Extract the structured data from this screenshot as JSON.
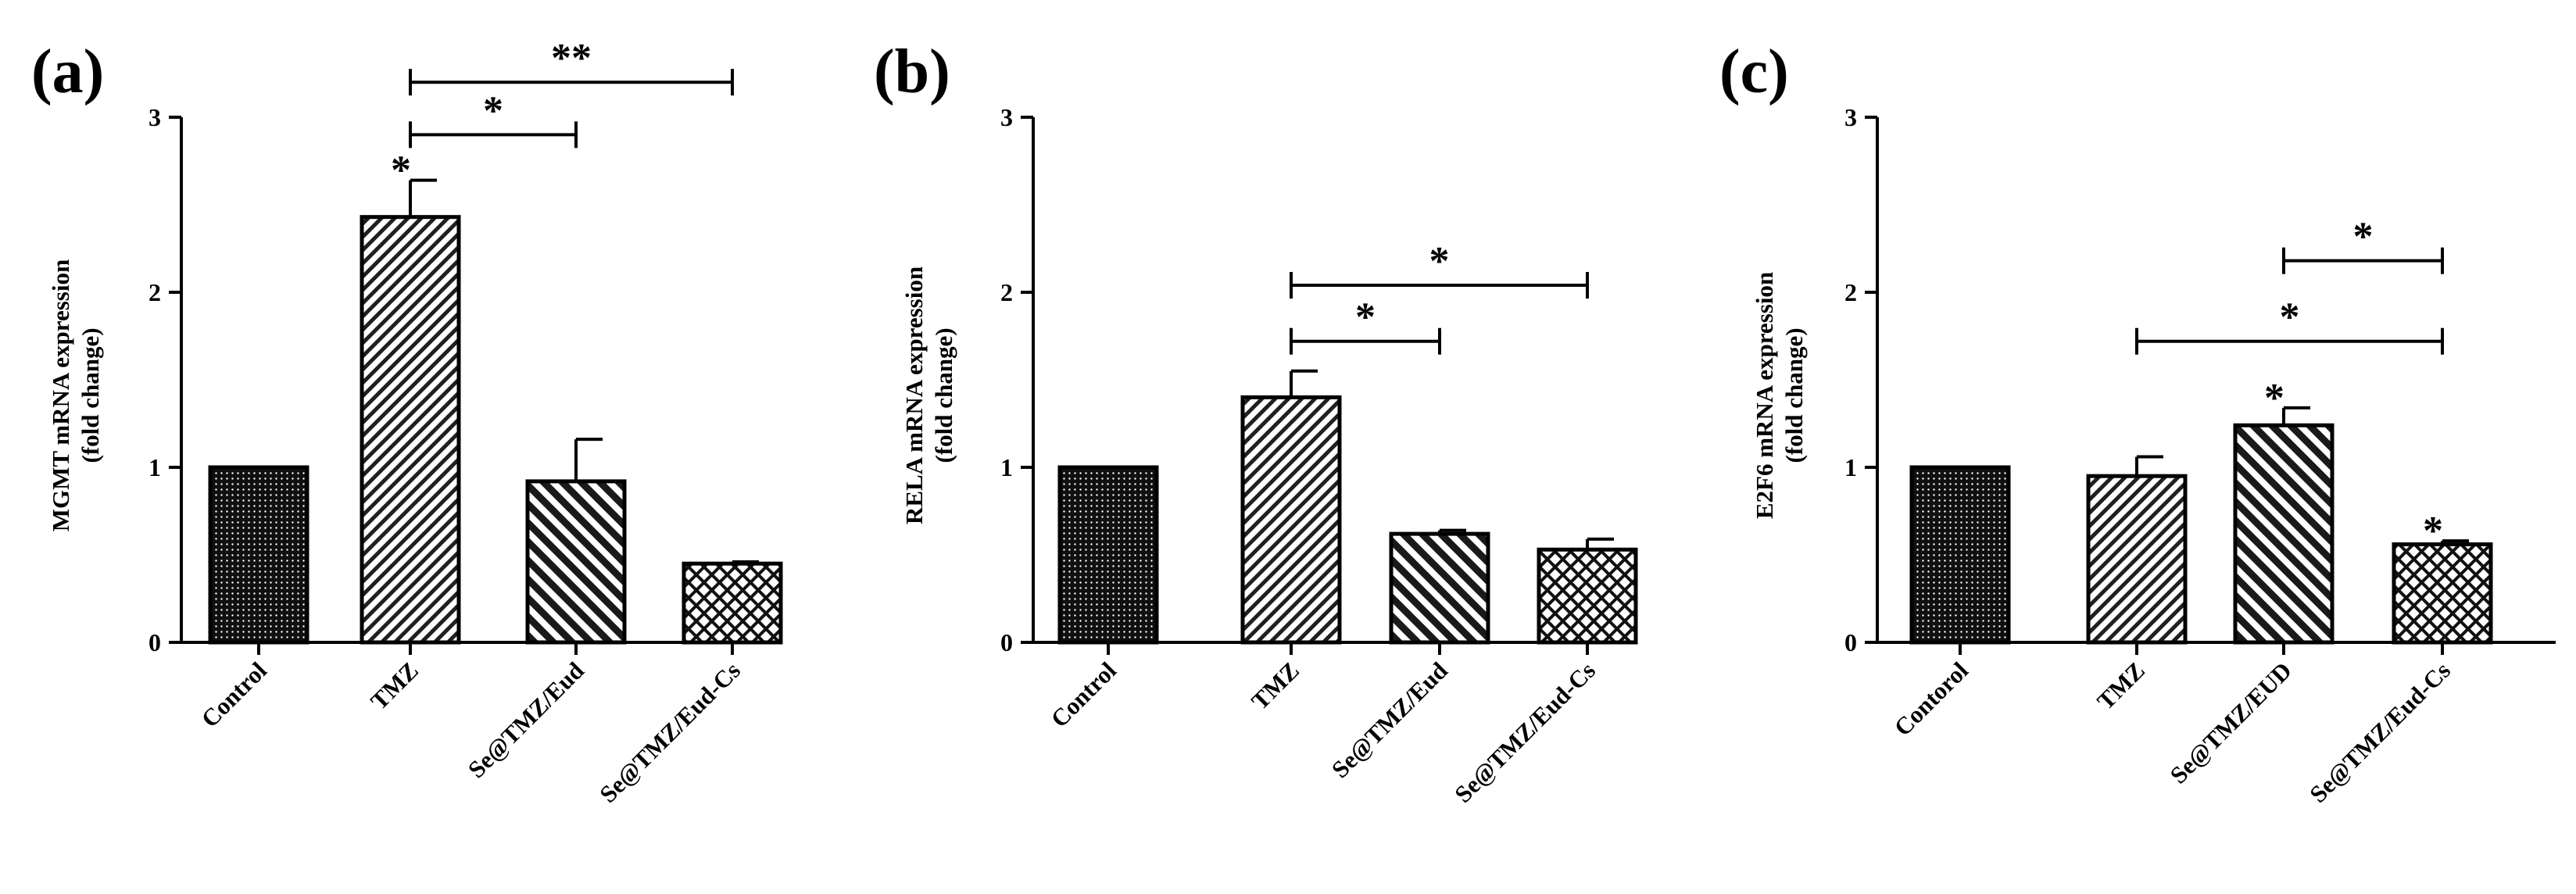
{
  "figure": {
    "panels": [
      "(a)",
      "(b)",
      "(c)"
    ]
  },
  "chart_data": [
    {
      "type": "bar",
      "panel": "(a)",
      "ylabel": [
        "MGMT mRNA expression",
        "(fold change)"
      ],
      "ylim": [
        0,
        3
      ],
      "yticks": [
        "0",
        "1",
        "2",
        "3"
      ],
      "categories": [
        "Control",
        "TMZ",
        "Se@TMZ/Eud",
        "Se@TMZ/Eud-Cs"
      ],
      "values": [
        1.0,
        2.43,
        0.92,
        0.45
      ],
      "errors": [
        0,
        0.21,
        0.24,
        0.01
      ],
      "patterns": [
        "dots",
        "diag",
        "backdiag",
        "cross"
      ],
      "bar_stars": [
        "",
        "*",
        "",
        ""
      ],
      "brackets": [
        {
          "from": 1,
          "to": 3,
          "y": 3.2,
          "label": "**"
        },
        {
          "from": 1,
          "to": 2,
          "y": 2.9,
          "label": "*"
        }
      ]
    },
    {
      "type": "bar",
      "panel": "(b)",
      "ylabel": [
        "RELA mRNA expression",
        "(fold change)"
      ],
      "ylim": [
        0,
        3
      ],
      "yticks": [
        "0",
        "1",
        "2",
        "3"
      ],
      "categories": [
        "Control",
        "TMZ",
        "Se@TMZ/Eud",
        "Se@TMZ/Eud-Cs"
      ],
      "values": [
        1.0,
        1.4,
        0.62,
        0.53
      ],
      "errors": [
        0,
        0.15,
        0.02,
        0.06
      ],
      "patterns": [
        "dots",
        "diag",
        "backdiag",
        "cross"
      ],
      "bar_stars": [
        "",
        "",
        "",
        ""
      ],
      "brackets": [
        {
          "from": 1,
          "to": 3,
          "y": 2.04,
          "label": "*"
        },
        {
          "from": 1,
          "to": 2,
          "y": 1.72,
          "label": "*"
        }
      ]
    },
    {
      "type": "bar",
      "panel": "(c)",
      "ylabel": [
        "E2F6 mRNA expression",
        "(fold change)"
      ],
      "ylim": [
        0,
        3
      ],
      "yticks": [
        "0",
        "1",
        "2",
        "3"
      ],
      "categories": [
        "Contorol",
        "TMZ",
        "Se@TMZ/EUD",
        "Se@TMZ/Eud-Cs"
      ],
      "values": [
        1.0,
        0.95,
        1.24,
        0.56
      ],
      "errors": [
        0,
        0.11,
        0.1,
        0.02
      ],
      "patterns": [
        "dots",
        "diag",
        "backdiag",
        "cross"
      ],
      "bar_stars": [
        "",
        "",
        "*",
        "*"
      ],
      "brackets": [
        {
          "from": 2,
          "to": 3,
          "y": 2.18,
          "label": "*"
        },
        {
          "from": 1,
          "to": 3,
          "y": 1.72,
          "label": "*"
        }
      ]
    }
  ]
}
